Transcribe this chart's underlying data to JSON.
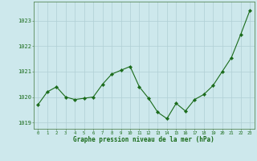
{
  "x": [
    0,
    1,
    2,
    3,
    4,
    5,
    6,
    7,
    8,
    9,
    10,
    11,
    12,
    13,
    14,
    15,
    16,
    17,
    18,
    19,
    20,
    21,
    22,
    23
  ],
  "y": [
    1019.7,
    1020.2,
    1020.4,
    1020.0,
    1019.9,
    1019.95,
    1020.0,
    1020.5,
    1020.9,
    1021.05,
    1021.2,
    1020.4,
    1019.95,
    1019.4,
    1019.15,
    1019.75,
    1019.45,
    1019.9,
    1020.1,
    1020.45,
    1021.0,
    1021.55,
    1022.45,
    1023.4
  ],
  "line_color": "#1a6b1a",
  "marker": "D",
  "marker_size": 2.2,
  "background_color": "#cde8ec",
  "grid_color": "#b0cfd4",
  "text_color": "#1a6b1a",
  "xlabel": "Graphe pression niveau de la mer (hPa)",
  "ylim": [
    1018.75,
    1023.75
  ],
  "yticks": [
    1019,
    1020,
    1021,
    1022,
    1023
  ],
  "xticks": [
    0,
    1,
    2,
    3,
    4,
    5,
    6,
    7,
    8,
    9,
    10,
    11,
    12,
    13,
    14,
    15,
    16,
    17,
    18,
    19,
    20,
    21,
    22,
    23
  ],
  "spine_color": "#5a8a5a"
}
